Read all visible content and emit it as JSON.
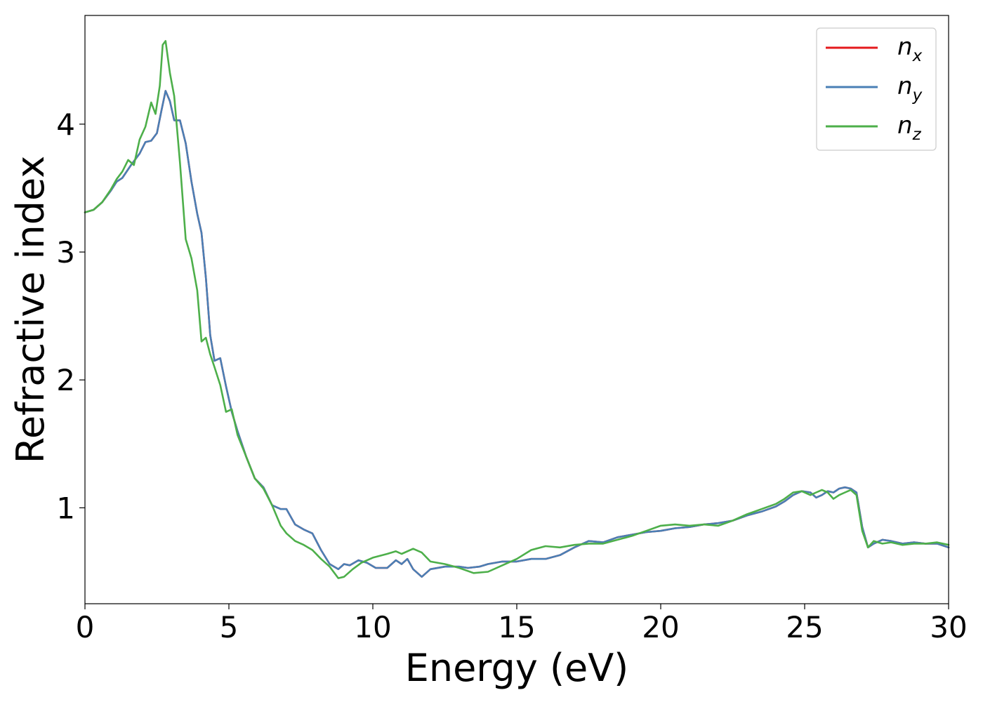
{
  "chart_data": {
    "type": "line",
    "xlabel": "Energy (eV)",
    "ylabel": "Refractive index",
    "xlim": [
      0,
      30
    ],
    "ylim": [
      0.25,
      4.85
    ],
    "xticks": [
      0,
      5,
      10,
      15,
      20,
      25,
      30
    ],
    "yticks": [
      1,
      2,
      3,
      4
    ],
    "grid": false,
    "legend_position": "top-right",
    "series": [
      {
        "name": "n_x",
        "legend_base": "n",
        "legend_sub": "x",
        "color": "#e41a1c",
        "x": [
          0,
          0.3,
          0.6,
          0.9,
          1.1,
          1.3,
          1.6,
          1.9,
          2.1,
          2.3,
          2.5,
          2.65,
          2.8,
          2.95,
          3.1,
          3.3,
          3.5,
          3.7,
          3.9,
          4.05,
          4.2,
          4.35,
          4.5,
          4.7,
          4.9,
          5.1,
          5.3,
          5.6,
          5.9,
          6.2,
          6.5,
          6.8,
          7.0,
          7.3,
          7.6,
          7.9,
          8.2,
          8.5,
          8.8,
          9.0,
          9.2,
          9.5,
          9.8,
          10.1,
          10.5,
          10.8,
          11.0,
          11.2,
          11.4,
          11.7,
          12.0,
          12.5,
          13.0,
          13.3,
          13.7,
          14.0,
          14.5,
          15.0,
          15.5,
          16.0,
          16.5,
          17.0,
          17.5,
          18.0,
          18.5,
          19.0,
          19.5,
          20.0,
          20.5,
          21.0,
          21.5,
          22.0,
          22.5,
          23.0,
          23.5,
          24.0,
          24.3,
          24.6,
          24.9,
          25.2,
          25.4,
          25.6,
          25.8,
          26.0,
          26.2,
          26.4,
          26.6,
          26.8,
          27.0,
          27.2,
          27.4,
          27.7,
          28.0,
          28.4,
          28.8,
          29.2,
          29.6,
          30.0
        ],
        "values": [
          3.31,
          3.33,
          3.39,
          3.48,
          3.55,
          3.58,
          3.68,
          3.77,
          3.86,
          3.87,
          3.93,
          4.1,
          4.26,
          4.18,
          4.03,
          4.03,
          3.85,
          3.55,
          3.3,
          3.15,
          2.8,
          2.35,
          2.15,
          2.17,
          1.95,
          1.75,
          1.6,
          1.4,
          1.23,
          1.16,
          1.02,
          0.99,
          0.99,
          0.87,
          0.83,
          0.8,
          0.67,
          0.56,
          0.52,
          0.56,
          0.55,
          0.59,
          0.57,
          0.53,
          0.53,
          0.59,
          0.56,
          0.6,
          0.52,
          0.46,
          0.52,
          0.54,
          0.54,
          0.53,
          0.54,
          0.56,
          0.58,
          0.58,
          0.6,
          0.6,
          0.63,
          0.69,
          0.74,
          0.73,
          0.77,
          0.79,
          0.81,
          0.82,
          0.84,
          0.85,
          0.87,
          0.88,
          0.9,
          0.94,
          0.97,
          1.01,
          1.05,
          1.1,
          1.13,
          1.12,
          1.08,
          1.1,
          1.13,
          1.12,
          1.15,
          1.16,
          1.15,
          1.12,
          0.85,
          0.69,
          0.72,
          0.75,
          0.74,
          0.72,
          0.73,
          0.72,
          0.72,
          0.69
        ]
      },
      {
        "name": "n_y",
        "legend_base": "n",
        "legend_sub": "y",
        "color": "#4a7fb5",
        "x": [
          0,
          0.3,
          0.6,
          0.9,
          1.1,
          1.3,
          1.6,
          1.9,
          2.1,
          2.3,
          2.5,
          2.65,
          2.8,
          2.95,
          3.1,
          3.3,
          3.5,
          3.7,
          3.9,
          4.05,
          4.2,
          4.35,
          4.5,
          4.7,
          4.9,
          5.1,
          5.3,
          5.6,
          5.9,
          6.2,
          6.5,
          6.8,
          7.0,
          7.3,
          7.6,
          7.9,
          8.2,
          8.5,
          8.8,
          9.0,
          9.2,
          9.5,
          9.8,
          10.1,
          10.5,
          10.8,
          11.0,
          11.2,
          11.4,
          11.7,
          12.0,
          12.5,
          13.0,
          13.3,
          13.7,
          14.0,
          14.5,
          15.0,
          15.5,
          16.0,
          16.5,
          17.0,
          17.5,
          18.0,
          18.5,
          19.0,
          19.5,
          20.0,
          20.5,
          21.0,
          21.5,
          22.0,
          22.5,
          23.0,
          23.5,
          24.0,
          24.3,
          24.6,
          24.9,
          25.2,
          25.4,
          25.6,
          25.8,
          26.0,
          26.2,
          26.4,
          26.6,
          26.8,
          27.0,
          27.2,
          27.4,
          27.7,
          28.0,
          28.4,
          28.8,
          29.2,
          29.6,
          30.0
        ],
        "values": [
          3.31,
          3.33,
          3.39,
          3.48,
          3.55,
          3.58,
          3.68,
          3.77,
          3.86,
          3.87,
          3.93,
          4.1,
          4.26,
          4.18,
          4.03,
          4.03,
          3.85,
          3.55,
          3.3,
          3.15,
          2.8,
          2.35,
          2.15,
          2.17,
          1.95,
          1.75,
          1.6,
          1.4,
          1.23,
          1.16,
          1.02,
          0.99,
          0.99,
          0.87,
          0.83,
          0.8,
          0.67,
          0.56,
          0.52,
          0.56,
          0.55,
          0.59,
          0.57,
          0.53,
          0.53,
          0.59,
          0.56,
          0.6,
          0.52,
          0.46,
          0.52,
          0.54,
          0.54,
          0.53,
          0.54,
          0.56,
          0.58,
          0.58,
          0.6,
          0.6,
          0.63,
          0.69,
          0.74,
          0.73,
          0.77,
          0.79,
          0.81,
          0.82,
          0.84,
          0.85,
          0.87,
          0.88,
          0.9,
          0.94,
          0.97,
          1.01,
          1.05,
          1.1,
          1.13,
          1.12,
          1.08,
          1.1,
          1.13,
          1.12,
          1.15,
          1.16,
          1.15,
          1.12,
          0.85,
          0.69,
          0.72,
          0.75,
          0.74,
          0.72,
          0.73,
          0.72,
          0.72,
          0.69
        ]
      },
      {
        "name": "n_z",
        "legend_base": "n",
        "legend_sub": "z",
        "color": "#4daf4a",
        "x": [
          0,
          0.3,
          0.6,
          0.9,
          1.1,
          1.3,
          1.5,
          1.7,
          1.9,
          2.1,
          2.3,
          2.45,
          2.6,
          2.7,
          2.8,
          2.95,
          3.1,
          3.3,
          3.5,
          3.7,
          3.9,
          4.05,
          4.2,
          4.35,
          4.5,
          4.7,
          4.9,
          5.1,
          5.3,
          5.6,
          5.9,
          6.2,
          6.5,
          6.8,
          7.0,
          7.3,
          7.6,
          7.9,
          8.2,
          8.5,
          8.8,
          9.0,
          9.3,
          9.6,
          10.0,
          10.5,
          10.8,
          11.0,
          11.4,
          11.7,
          12.0,
          12.5,
          13.0,
          13.5,
          14.0,
          14.5,
          15.0,
          15.5,
          16.0,
          16.5,
          17.0,
          17.5,
          18.0,
          18.5,
          19.0,
          19.5,
          20.0,
          20.5,
          21.0,
          21.5,
          22.0,
          22.5,
          23.0,
          23.5,
          24.0,
          24.3,
          24.6,
          24.9,
          25.2,
          25.4,
          25.6,
          25.8,
          26.0,
          26.2,
          26.4,
          26.6,
          26.8,
          27.0,
          27.2,
          27.4,
          27.7,
          28.0,
          28.4,
          28.8,
          29.2,
          29.6,
          30.0
        ],
        "values": [
          3.31,
          3.33,
          3.39,
          3.49,
          3.57,
          3.63,
          3.72,
          3.68,
          3.88,
          3.98,
          4.17,
          4.08,
          4.3,
          4.62,
          4.65,
          4.4,
          4.22,
          3.7,
          3.1,
          2.95,
          2.7,
          2.3,
          2.33,
          2.2,
          2.1,
          1.96,
          1.75,
          1.77,
          1.57,
          1.4,
          1.23,
          1.15,
          1.02,
          0.86,
          0.8,
          0.74,
          0.71,
          0.67,
          0.6,
          0.54,
          0.45,
          0.46,
          0.52,
          0.57,
          0.61,
          0.64,
          0.66,
          0.64,
          0.68,
          0.65,
          0.58,
          0.56,
          0.53,
          0.49,
          0.5,
          0.55,
          0.6,
          0.67,
          0.7,
          0.69,
          0.71,
          0.72,
          0.72,
          0.75,
          0.78,
          0.82,
          0.86,
          0.87,
          0.86,
          0.87,
          0.86,
          0.9,
          0.95,
          0.99,
          1.03,
          1.07,
          1.12,
          1.13,
          1.1,
          1.12,
          1.14,
          1.12,
          1.07,
          1.1,
          1.12,
          1.14,
          1.1,
          0.82,
          0.69,
          0.74,
          0.72,
          0.73,
          0.71,
          0.72,
          0.72,
          0.73,
          0.71
        ]
      }
    ]
  }
}
